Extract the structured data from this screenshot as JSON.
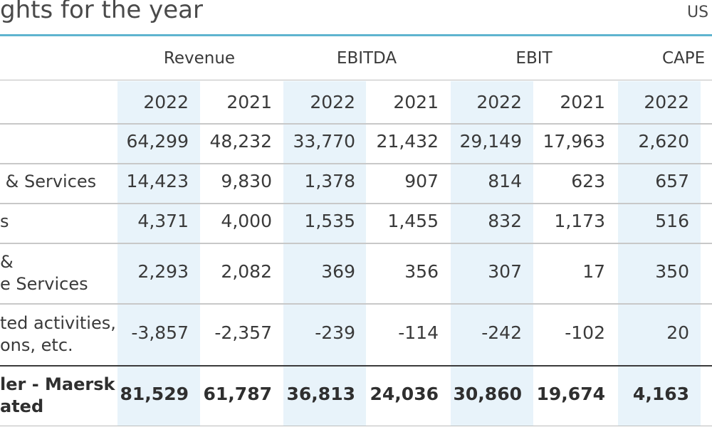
{
  "header": {
    "title": "ghts for the year",
    "unit": "US"
  },
  "column_groups": [
    "Revenue",
    "EBITDA",
    "EBIT",
    "CAPE"
  ],
  "years": [
    "2022",
    "2021",
    "2022",
    "2021",
    "2022",
    "2021",
    "2022"
  ],
  "rows": [
    {
      "label": "",
      "values": [
        "64,299",
        "48,232",
        "33,770",
        "21,432",
        "29,149",
        "17,963",
        "2,620"
      ]
    },
    {
      "label": " & Services",
      "values": [
        "14,423",
        "9,830",
        "1,378",
        "907",
        "814",
        "623",
        "657"
      ]
    },
    {
      "label": "s",
      "values": [
        "4,371",
        "4,000",
        "1,535",
        "1,455",
        "832",
        "1,173",
        "516"
      ]
    },
    {
      "label": "&\ne Services",
      "values": [
        "2,293",
        "2,082",
        "369",
        "356",
        "307",
        "17",
        "350"
      ]
    },
    {
      "label": "ted activities,\nons, etc.",
      "values": [
        "-3,857",
        "-2,357",
        "-239",
        "-114",
        "-242",
        "-102",
        "20"
      ]
    },
    {
      "label": "ler - Maersk\nated",
      "values": [
        "81,529",
        "61,787",
        "36,813",
        "24,036",
        "30,860",
        "19,674",
        "4,163"
      ],
      "bold": true
    }
  ]
}
